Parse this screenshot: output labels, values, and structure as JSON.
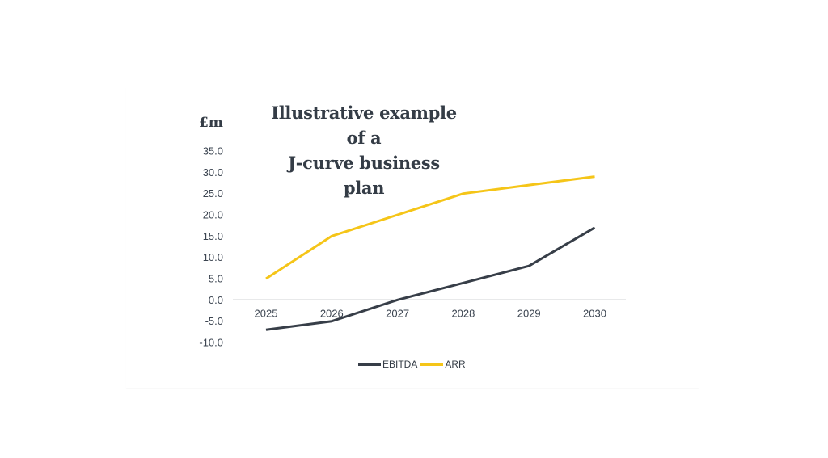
{
  "colors": {
    "ebitda": "#373e48",
    "arr": "#f5c518",
    "axis": "#4a4f57",
    "text": "#343c46"
  },
  "chart_data": {
    "type": "line",
    "title_line1": "Illustrative example of a",
    "title_line2": "J-curve business plan",
    "ylabel": "£m",
    "xlabel": "",
    "x": [
      "2025",
      "2026",
      "2027",
      "2028",
      "2029",
      "2030"
    ],
    "yticks": [
      "35.0",
      "30.0",
      "25.0",
      "20.0",
      "15.0",
      "10.0",
      "5.0",
      "0.0",
      "-5.0",
      "-10.0"
    ],
    "ylim": [
      -10,
      35
    ],
    "grid": false,
    "legend_position": "bottom",
    "series": [
      {
        "name": "EBITDA",
        "values": [
          -7,
          -5,
          0,
          4,
          8,
          17
        ]
      },
      {
        "name": "ARR",
        "values": [
          5,
          15,
          20,
          25,
          27,
          29
        ]
      }
    ]
  }
}
